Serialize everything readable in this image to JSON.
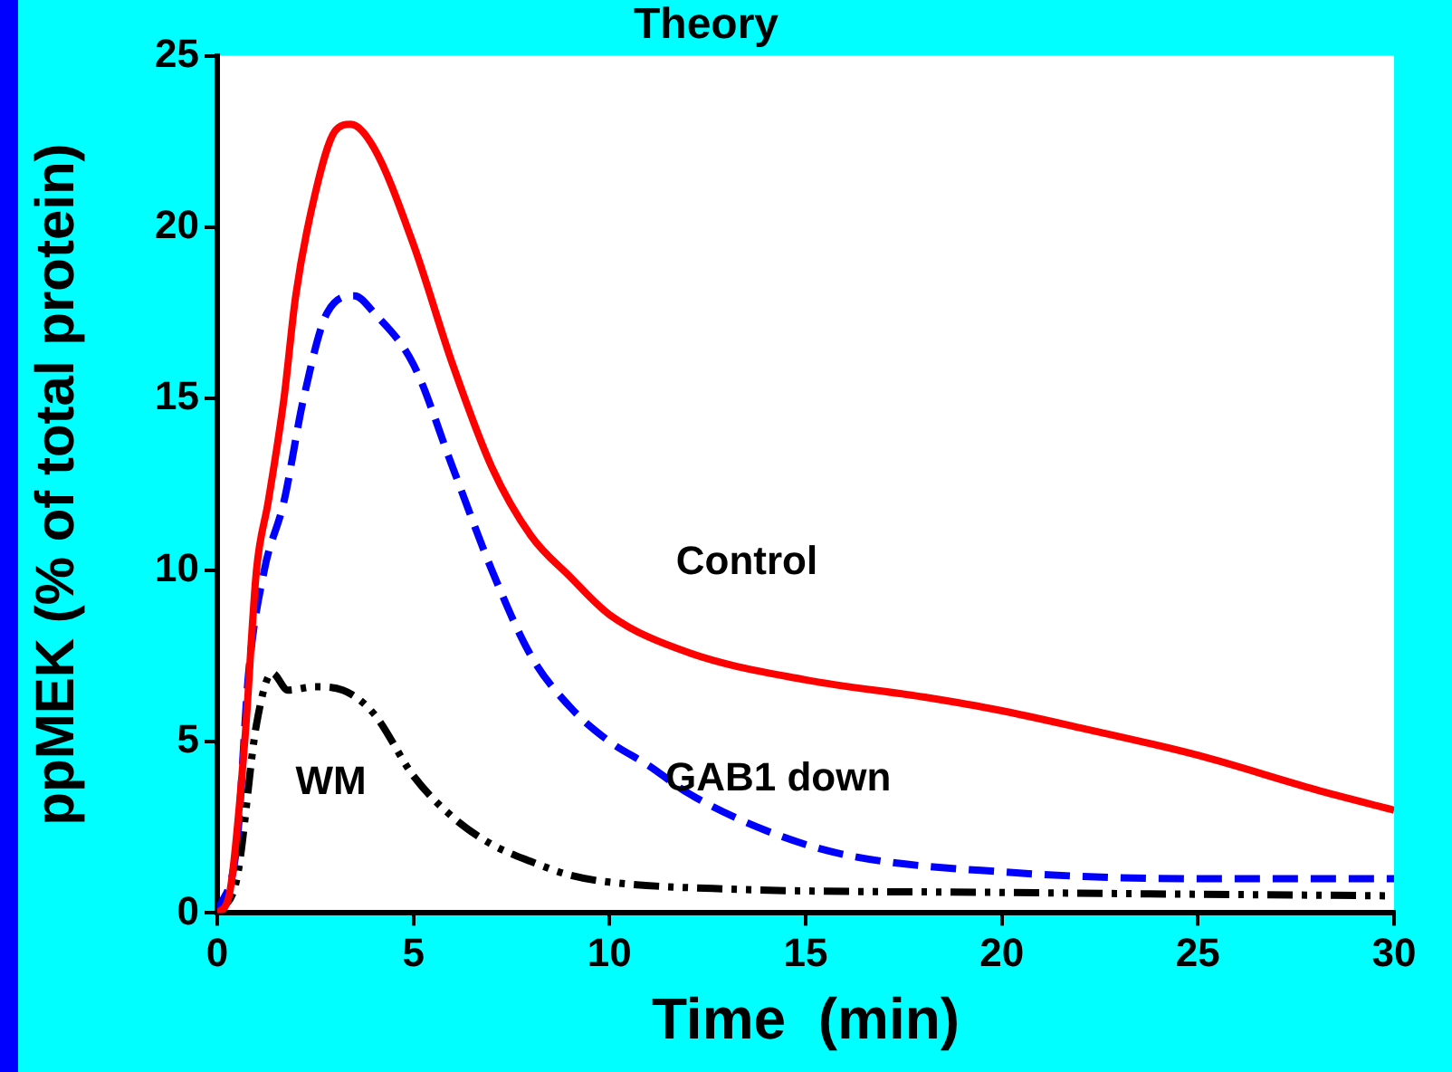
{
  "chart_data": {
    "type": "line",
    "title": "Theory",
    "xlabel": "Time  (min)",
    "ylabel": "ppMEK (% of total protein)",
    "xlim": [
      0,
      30
    ],
    "xticks": [
      0,
      5,
      10,
      15,
      20,
      25,
      30
    ],
    "ylim": [
      0,
      25
    ],
    "yticks": [
      0,
      5,
      10,
      15,
      20,
      25
    ],
    "grid": false,
    "legend": false,
    "marker": "none",
    "series": [
      {
        "name": "Control",
        "color": "#ff0000",
        "line_style": "solid",
        "x": [
          0,
          0.3,
          0.7,
          1,
          1.3,
          1.7,
          2,
          2.5,
          3,
          3.4,
          4,
          5,
          6,
          7,
          8,
          9,
          10,
          12,
          15,
          18,
          20,
          22,
          25,
          28,
          30
        ],
        "values": [
          0,
          0.5,
          5,
          10,
          12,
          15,
          18,
          21,
          22.8,
          23,
          22.3,
          19.5,
          16,
          13,
          11,
          9.8,
          8.7,
          7.6,
          6.8,
          6.3,
          5.9,
          5.4,
          4.6,
          3.6,
          3
        ]
      },
      {
        "name": "GAB1 down",
        "color": "#0000ff",
        "line_style": "dashed",
        "x": [
          0,
          0.5,
          0.8,
          1.2,
          1.7,
          2.2,
          2.8,
          3.5,
          4,
          5,
          6,
          7,
          8,
          9,
          10,
          11,
          12,
          14,
          16,
          20,
          25,
          30
        ],
        "values": [
          0,
          2,
          7,
          10,
          12,
          15,
          17.5,
          18,
          17.5,
          16,
          13,
          10,
          7.5,
          6,
          5,
          4.3,
          3.5,
          2.4,
          1.7,
          1.2,
          1,
          1
        ]
      },
      {
        "name": "WM",
        "color": "#000000",
        "line_style": "dotted",
        "x": [
          0,
          0.5,
          1,
          1.4,
          1.8,
          2.5,
          3.2,
          4,
          5,
          6,
          7,
          8,
          9,
          10,
          13,
          20,
          30
        ],
        "values": [
          0,
          1,
          5.5,
          7,
          6.5,
          6.6,
          6.5,
          5.8,
          4,
          2.8,
          2,
          1.5,
          1.1,
          0.9,
          0.7,
          0.6,
          0.5
        ]
      }
    ]
  }
}
